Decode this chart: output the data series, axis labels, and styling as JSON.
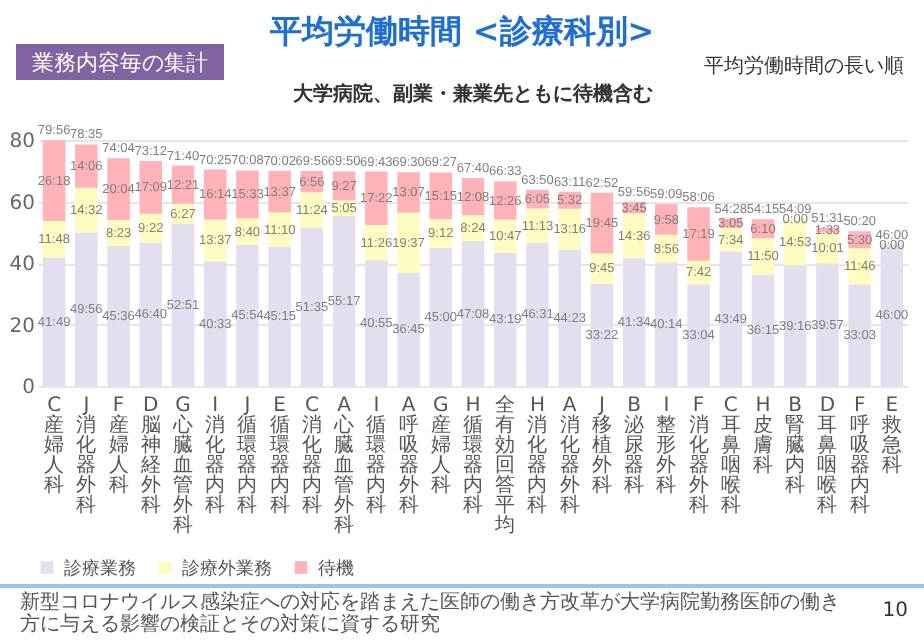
{
  "chart_data": {
    "type": "bar",
    "stacked": true,
    "title": "平均労働時間 <診療科別>",
    "subtitle": "大学病院、副業・兼業先ともに待機含む",
    "annotations": [
      "業務内容毎の集計",
      "平均労働時間の長い順",
      "新型コロナウイルス感染症への対応を踏まえた医師の働き方改革が大学病院勤務医師の働き方に与える影響の検証とその対策に資する研究",
      "10"
    ],
    "categories": [
      "C 産婦人科",
      "J 消化器外科",
      "F 産婦人科",
      "D 脳神経外科",
      "G 心臓血管外科",
      "I 消化器内科",
      "J 循環器内科",
      "E 循環器内科",
      "C 消化器内科",
      "A 心臓血管外科",
      "I 循環器内科",
      "A 呼吸器外科",
      "G 産婦人科",
      "H 循環器内科",
      "全有効回答平均",
      "H 消化器内科",
      "A 消化器外科",
      "J 移植外科",
      "B 泌尿器科",
      "I 整形外科",
      "F 消化器外科",
      "C 耳鼻咽喉科",
      "H 皮膚科",
      "B 腎臓内科",
      "D 耳鼻咽喉科",
      "F 呼吸器内科",
      "E 救急科"
    ],
    "series": [
      {
        "name": "診療業務",
        "color": "#e4dfee",
        "values": [
          41.82,
          49.93,
          45.6,
          46.67,
          52.85,
          40.55,
          45.9,
          45.25,
          51.58,
          55.28,
          40.92,
          36.75,
          45.0,
          47.13,
          43.32,
          46.52,
          44.38,
          33.37,
          41.57,
          40.23,
          33.07,
          43.82,
          36.25,
          39.27,
          39.95,
          33.05,
          46.0
        ],
        "value_labels": [
          "41:49",
          "49:56",
          "45:36",
          "46:40",
          "52:51",
          "40:33",
          "45:54",
          "45:15",
          "51:35",
          "55:17",
          "40:55",
          "36:45",
          "45:00",
          "47:08",
          "43:19",
          "46:31",
          "44:23",
          "33:22",
          "41:34",
          "40:14",
          "33:04",
          "43:49",
          "36:15",
          "39:16",
          "39:57",
          "33:03",
          "46:00"
        ]
      },
      {
        "name": "診療外業務",
        "color": "#fffcc2",
        "values": [
          11.8,
          14.53,
          8.38,
          9.37,
          6.45,
          13.62,
          8.67,
          11.17,
          11.4,
          5.08,
          11.43,
          19.62,
          9.2,
          8.4,
          10.78,
          11.22,
          13.27,
          9.75,
          14.6,
          8.93,
          7.7,
          7.57,
          11.83,
          14.88,
          10.02,
          11.77,
          0
        ],
        "value_labels": [
          "11:48",
          "14:32",
          "8:23",
          "9:22",
          "6:27",
          "13:37",
          "8:40",
          "11:10",
          "11:24",
          "5:05",
          "11:26",
          "19:37",
          "9:12",
          "8:24",
          "10:47",
          "11:13",
          "13:16",
          "9:45",
          "14:36",
          "8:56",
          "7:42",
          "7:34",
          "11:50",
          "14:53",
          "10:01",
          "11:46",
          "0:00"
        ]
      },
      {
        "name": "待機",
        "color": "#ffb3b8",
        "values": [
          26.3,
          14.1,
          20.07,
          17.15,
          12.35,
          16.23,
          15.55,
          13.62,
          6.93,
          9.45,
          17.37,
          13.12,
          15.25,
          12.13,
          12.43,
          6.08,
          5.53,
          19.75,
          3.75,
          9.97,
          17.32,
          3.08,
          6.17,
          0,
          1.55,
          5.5,
          0
        ],
        "value_labels": [
          "26:18",
          "14:06",
          "20:04",
          "17:09",
          "12:21",
          "16:14",
          "15:33",
          "13:37",
          "6:56",
          "9:27",
          "17:22",
          "13:07",
          "15:15",
          "12:08",
          "12:26",
          "6:05",
          "5:32",
          "19:45",
          "3:45",
          "9:58",
          "17:19",
          "3:05",
          "6:10",
          "0:00",
          "1:33",
          "5:30",
          null
        ]
      }
    ],
    "totals": [
      "79:56",
      "78:35",
      "74:04",
      "73:12",
      "71:40",
      "70:25",
      "70:08",
      "70:02",
      "69:56",
      "69:50",
      "69:43",
      "69:30",
      "69:27",
      "67:40",
      "66:33",
      "63:50",
      "63:11",
      "62:52",
      "59:56",
      "59:09",
      "58:06",
      "54:28",
      "54:15",
      "54:09",
      "51:31",
      "50:20",
      "46:00"
    ],
    "ylim": [
      0,
      80
    ],
    "yticks": [
      0,
      20,
      40,
      60,
      80
    ],
    "grid": "y",
    "legend": "bottom"
  }
}
